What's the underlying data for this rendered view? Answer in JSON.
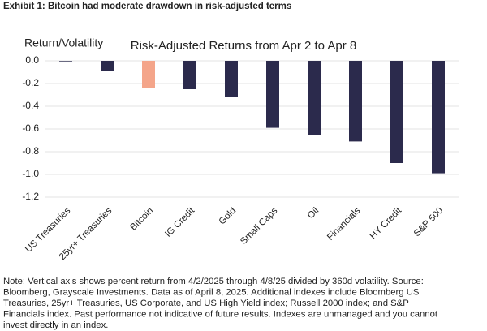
{
  "header": "Exhibit 1: Bitcoin had moderate drawdown in risk-adjusted terms",
  "chart_data": {
    "type": "bar",
    "title": "Risk-Adjusted Returns from Apr 2 to Apr 8",
    "y_label": "Return/Volatility",
    "categories": [
      "US Treasuries",
      "25yr+ Treasuries",
      "Bitcoin",
      "IG Credit",
      "Gold",
      "Small Caps",
      "Oil",
      "Financials",
      "HY Credit",
      "S&P 500"
    ],
    "values": [
      -0.005,
      -0.09,
      -0.24,
      -0.25,
      -0.32,
      -0.59,
      -0.65,
      -0.71,
      -0.9,
      -0.99
    ],
    "colors": [
      "#2b2a4c",
      "#2b2a4c",
      "#f4a58a",
      "#2b2a4c",
      "#2b2a4c",
      "#2b2a4c",
      "#2b2a4c",
      "#2b2a4c",
      "#2b2a4c",
      "#2b2a4c"
    ],
    "ylim": [
      -1.2,
      0
    ],
    "yticks": [
      {
        "value": 0,
        "label": "0.0"
      },
      -0.2,
      -0.4,
      -0.6,
      -0.8,
      {
        "value": -1,
        "label": "-1.0"
      },
      -1.2
    ],
    "grid": true
  },
  "note": [
    "Note: Vertical axis shows percent return from 4/2/2025 through 4/8/25 divided by 360d volatility. Source:",
    "Bloomberg, Grayscale Investments. Data as of April 8, 2025. Additional indexes include Bloomberg US",
    "Treasuries, 25yr+ Treasuries, US Corporate, and US High Yield index; Russell 2000 index; and S&P",
    "Financials index. Past performance not indicative of future results. Indexes are unmanaged and you cannot",
    "invest directly in an index."
  ]
}
